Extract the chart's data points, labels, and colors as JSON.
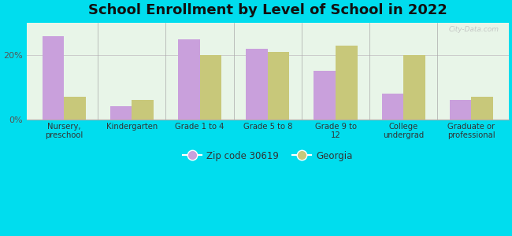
{
  "title": "School Enrollment by Level of School in 2022",
  "categories": [
    "Nursery,\npreschool",
    "Kindergarten",
    "Grade 1 to 4",
    "Grade 5 to 8",
    "Grade 9 to\n12",
    "College\nundergrad",
    "Graduate or\nprofessional"
  ],
  "zip_values": [
    26,
    4,
    25,
    22,
    15,
    8,
    6
  ],
  "georgia_values": [
    7,
    6,
    20,
    21,
    23,
    20,
    7
  ],
  "zip_color": "#C9A0DC",
  "georgia_color": "#C8C87A",
  "background_color": "#00DDEE",
  "plot_bg_color": "#e8f5e8",
  "zip_label": "Zip code 30619",
  "georgia_label": "Georgia",
  "ylim": [
    0,
    30
  ],
  "yticks": [
    0,
    20
  ],
  "ytick_labels": [
    "0%",
    "20%"
  ],
  "bar_width": 0.32,
  "title_fontsize": 13,
  "watermark": "City-Data.com"
}
